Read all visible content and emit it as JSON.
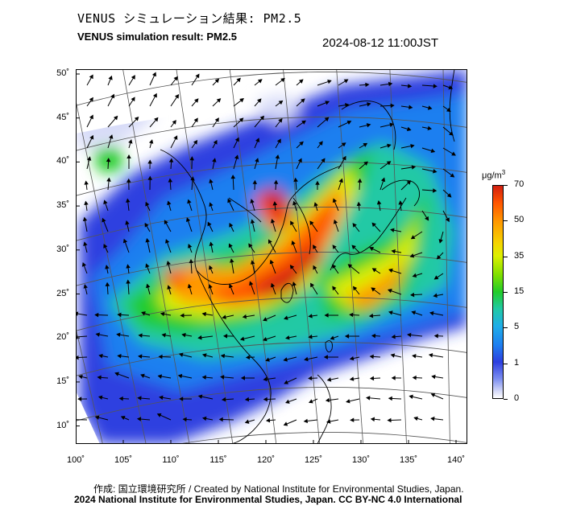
{
  "header": {
    "title_ja": "VENUS シミュレーション結果: PM2.5",
    "title_en": "VENUS simulation result: PM2.5",
    "timestamp": "2024-08-12 11:00JST"
  },
  "map": {
    "latitude_labels": [
      "50˚",
      "45˚",
      "40˚",
      "35˚",
      "30˚",
      "25˚",
      "20˚",
      "15˚",
      "10˚"
    ],
    "longitude_labels": [
      "100˚",
      "105˚",
      "110˚",
      "115˚",
      "120˚",
      "125˚",
      "130˚",
      "135˚",
      "140˚"
    ],
    "field_layer": "pm25-concentration-shading",
    "vector_layer": "wind-arrows",
    "colors": {
      "low": "#d8dcf8",
      "blue": "#2d3fe0",
      "cyan": "#1faee8",
      "green": "#21cc2a",
      "yellow": "#ddf000",
      "orange": "#ff9900",
      "red": "#d21f10"
    }
  },
  "colorbar": {
    "unit_main": "μg/m",
    "unit_sup": "3",
    "labels": [
      "70",
      "50",
      "35",
      "15",
      "5",
      "1",
      "0"
    ],
    "range": [
      0,
      70
    ]
  },
  "footer": {
    "credit": "作成: 国立環境研究所 / Created by National Institute for Environmental Studies, Japan.",
    "copyright": "2024 National Institute for Environmental Studies, Japan. CC BY-NC 4.0 International"
  }
}
